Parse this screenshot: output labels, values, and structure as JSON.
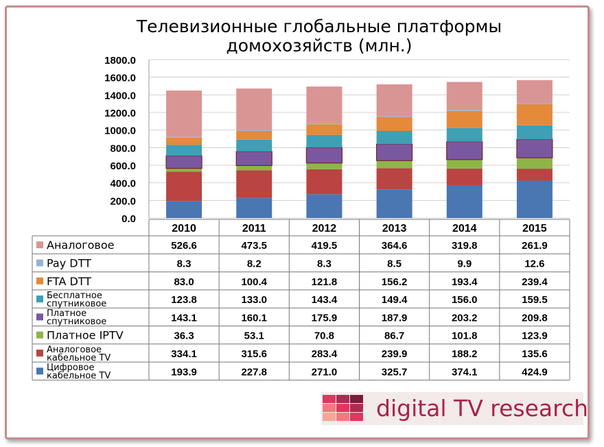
{
  "title_line1": "Телевизионные глобальные платформы",
  "title_line2": "домохозяйств (млн.)",
  "logo": {
    "text": "digital TV research",
    "tile_colors": [
      "#e0365f",
      "#b02a52",
      "#7a1d3a",
      "#f07a7f",
      "#e0365f",
      "#b02a52",
      "#f7a596",
      "#f07a7f",
      "#e0365f"
    ]
  },
  "chart_data": {
    "type": "bar",
    "stacked": true,
    "title": "Телевизионные глобальные платформы домохозяйств (млн.)",
    "categories": [
      "2010",
      "2011",
      "2012",
      "2013",
      "2014",
      "2015"
    ],
    "ylim": [
      0,
      1800
    ],
    "yticks": [
      "1800.0",
      "1600.0",
      "1400.0",
      "1200.0",
      "1000.0",
      "800.0",
      "600.0",
      "400.0",
      "200.0",
      "0.0"
    ],
    "grid": true,
    "legend": "table-bottom",
    "series": [
      {
        "name": "Аналоговое",
        "color": "#d99594",
        "values": [
          526.6,
          473.5,
          419.5,
          364.6,
          319.8,
          261.9
        ],
        "labels": [
          "526.6",
          "473.5",
          "419.5",
          "364.6",
          "319.8",
          "261.9"
        ]
      },
      {
        "name": "Pay DTT",
        "color": "#95b3d7",
        "values": [
          8.3,
          8.2,
          8.3,
          8.5,
          9.9,
          12.6
        ],
        "labels": [
          "8.3",
          "8.2",
          "8.3",
          "8.5",
          "9.9",
          "12.6"
        ]
      },
      {
        "name": "FTA DTT",
        "color": "#e5893a",
        "values": [
          83.0,
          100.4,
          121.8,
          156.2,
          193.4,
          239.4
        ],
        "labels": [
          "83.0",
          "100.4",
          "121.8",
          "156.2",
          "193.4",
          "239.4"
        ]
      },
      {
        "name": "Бесплатное спутниковое",
        "name_lines": [
          "Бесплатное",
          "спутниковое"
        ],
        "color": "#3f9fb4",
        "values": [
          123.8,
          133.0,
          143.4,
          149.4,
          156.0,
          159.5
        ],
        "labels": [
          "123.8",
          "133.0",
          "143.4",
          "149.4",
          "156.0",
          "159.5"
        ]
      },
      {
        "name": "Платное спутниковое",
        "name_lines": [
          "Платное",
          "спутниковое"
        ],
        "color": "#7a58a0",
        "values": [
          143.1,
          160.1,
          175.9,
          187.9,
          203.2,
          209.8
        ],
        "labels": [
          "143.1",
          "160.1",
          "175.9",
          "187.9",
          "203.2",
          "209.8"
        ]
      },
      {
        "name": "Платное IPTV",
        "color": "#8db547",
        "values": [
          36.3,
          53.1,
          70.8,
          86.7,
          101.8,
          123.9
        ],
        "labels": [
          "36.3",
          "53.1",
          "70.8",
          "86.7",
          "101.8",
          "123.9"
        ]
      },
      {
        "name": "Аналоговое кабельное TV",
        "name_lines": [
          "Аналоговое",
          "кабельное TV"
        ],
        "color": "#b94442",
        "values": [
          334.1,
          315.6,
          283.4,
          239.9,
          188.2,
          135.6
        ],
        "labels": [
          "334.1",
          "315.6",
          "283.4",
          "239.9",
          "188.2",
          "135.6"
        ]
      },
      {
        "name": "Цифровое кабельное TV",
        "name_lines": [
          "Цифровое",
          "кабельное TV"
        ],
        "color": "#4a76b2",
        "values": [
          193.9,
          227.8,
          271.0,
          325.7,
          374.1,
          424.9
        ],
        "labels": [
          "193.9",
          "227.8",
          "271.0",
          "325.7",
          "374.1",
          "424.9"
        ]
      }
    ]
  }
}
